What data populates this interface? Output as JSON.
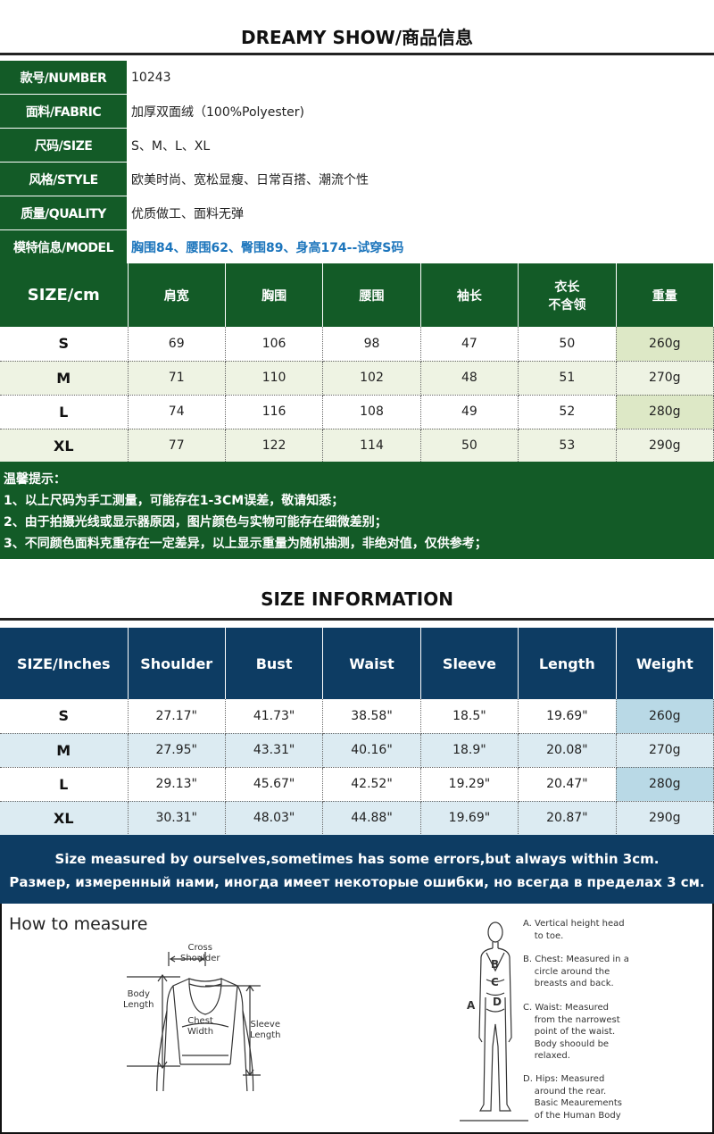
{
  "title": "DREAMY SHOW/商品信息",
  "info": [
    {
      "label": "款号/NUMBER",
      "value": "10243"
    },
    {
      "label": "面料/FABRIC",
      "value": "加厚双面绒（100%Polyester)"
    },
    {
      "label": "尺码/SIZE",
      "value": "S、M、L、XL"
    },
    {
      "label": "风格/STYLE",
      "value": "欧美时尚、宽松显瘦、日常百搭、潮流个性"
    },
    {
      "label": "质量/QUALITY",
      "value": "优质做工、面料无弹"
    },
    {
      "label": "模特信息/MODEL",
      "value": "胸围84、腰围62、臀围89、身高174--试穿S码"
    }
  ],
  "cm_table": {
    "headers": [
      "SIZE/cm",
      "肩宽",
      "胸围",
      "腰围",
      "袖长",
      "衣长\n不含领",
      "重量"
    ],
    "rows": [
      [
        "S",
        "69",
        "106",
        "98",
        "47",
        "50",
        "260g"
      ],
      [
        "M",
        "71",
        "110",
        "102",
        "48",
        "51",
        "270g"
      ],
      [
        "L",
        "74",
        "116",
        "108",
        "49",
        "52",
        "280g"
      ],
      [
        "XL",
        "77",
        "122",
        "114",
        "50",
        "53",
        "290g"
      ]
    ]
  },
  "cm_notes": [
    "温馨提示：",
    "1、以上尺码为手工测量，可能存在1-3CM误差，敬请知悉；",
    "2、由于拍摄光线或显示器原因，图片颜色与实物可能存在细微差别；",
    "3、不同颜色面料克重存在一定差异，以上显示重量为随机抽测，非绝对值，仅供参考；"
  ],
  "size_info_title": "SIZE INFORMATION",
  "inch_table": {
    "headers": [
      "SIZE/Inches",
      "Shoulder",
      "Bust",
      "Waist",
      "Sleeve",
      "Length",
      "Weight"
    ],
    "rows": [
      [
        "S",
        "27.17\"",
        "41.73\"",
        "38.58\"",
        "18.5\"",
        "19.69\"",
        "260g"
      ],
      [
        "M",
        "27.95\"",
        "43.31\"",
        "40.16\"",
        "18.9\"",
        "20.08\"",
        "270g"
      ],
      [
        "L",
        "29.13\"",
        "45.67\"",
        "42.52\"",
        "19.29\"",
        "20.47\"",
        "280g"
      ],
      [
        "XL",
        "30.31\"",
        "48.03\"",
        "44.88\"",
        "19.69\"",
        "20.87\"",
        "290g"
      ]
    ]
  },
  "inch_notes": [
    "Size measured by ourselves,sometimes has some errors,but always within 3cm.",
    "Размер, измеренный нами, иногда имеет некоторые ошибки, но всегда в пределах 3 см."
  ],
  "measure": {
    "title": "How to measure",
    "cross_shoulder": "Cross\nShoulder",
    "body_length": "Body\nLength",
    "chest_width": "Chest\nWidth",
    "sleeve_length": "Sleeve\nLength",
    "markers": [
      "A",
      "B",
      "C",
      "D"
    ],
    "desc_a": "A. Vertical height head\n    to toe.",
    "desc_b": "B. Chest: Measured in a\n    circle around the\n    breasts and back.",
    "desc_c": "C. Waist: Measured\n    from the narrowest\n    point of the waist.\n    Body shoould be\n    relaxed.",
    "desc_d": "D. Hips: Measured\n    around the rear.\n    Basic Meaurements\n    of the Human Body"
  },
  "colors": {
    "green": "#135b27",
    "navy": "#0d3c63",
    "model_blue": "#1c75bc"
  }
}
